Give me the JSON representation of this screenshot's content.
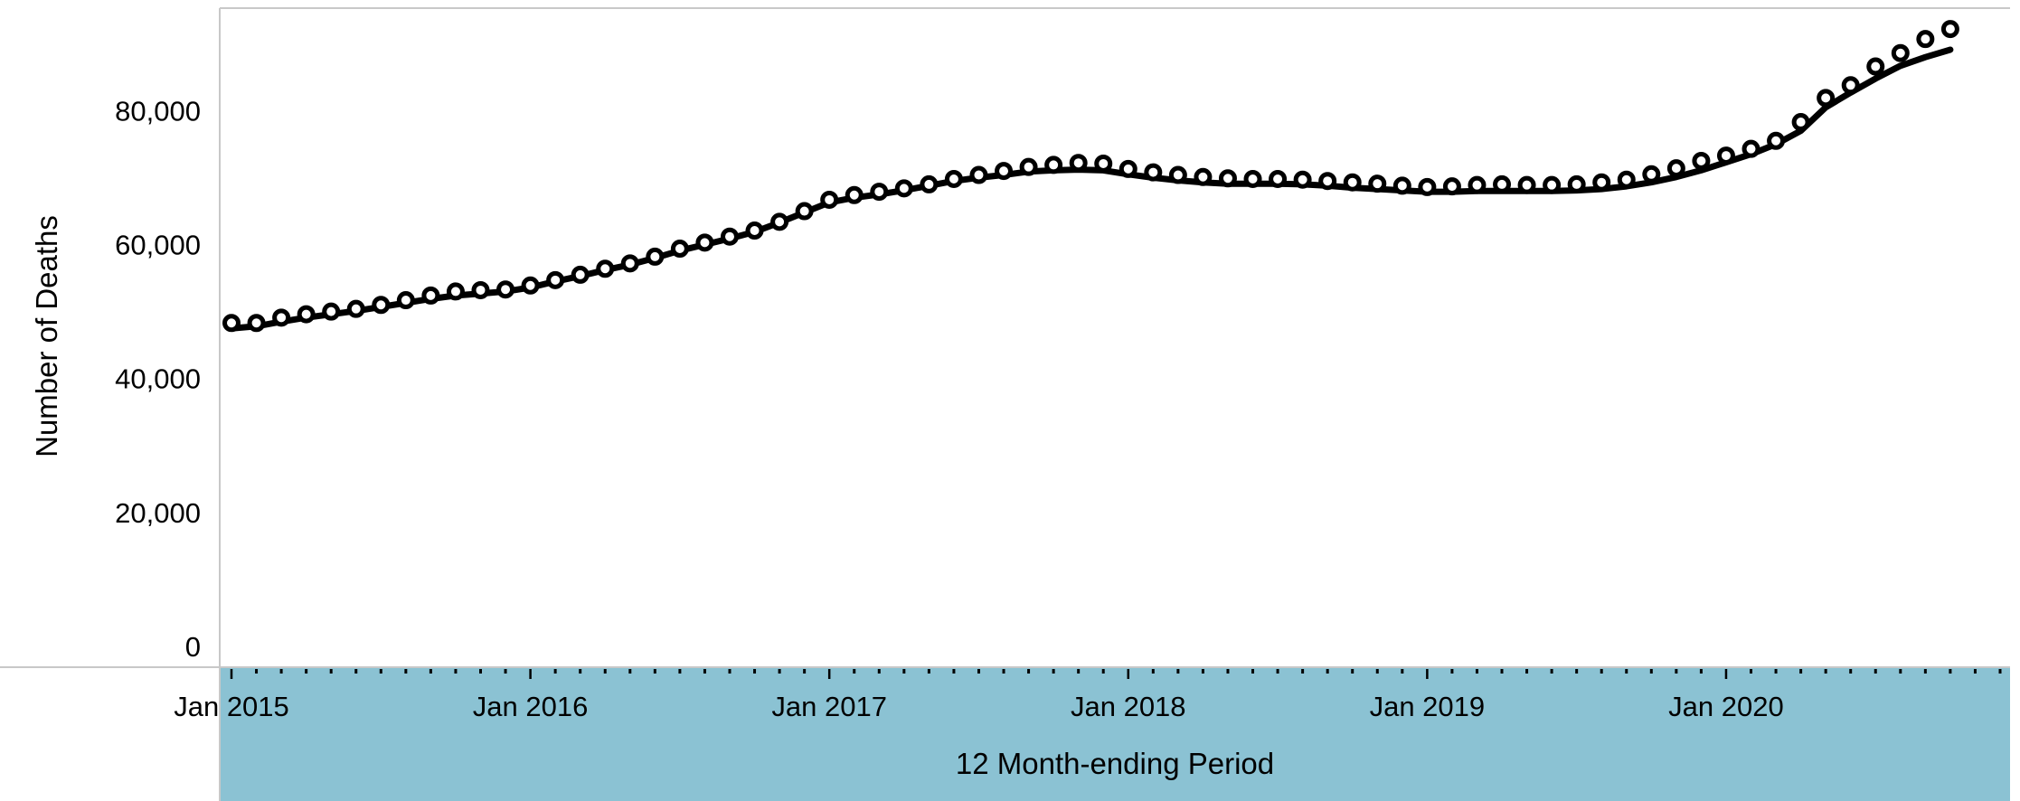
{
  "chart_data": {
    "type": "line",
    "title": "",
    "xlabel": "12 Month-ending Period",
    "ylabel": "Number of Deaths",
    "x_start": "2015-01",
    "x_end": "2020-12",
    "xlim": [
      "2014-12",
      "2020-12"
    ],
    "ylim": [
      0,
      95000
    ],
    "y_ticks": [
      0,
      20000,
      40000,
      60000,
      80000
    ],
    "y_tick_labels": [
      "0",
      "20,000",
      "40,000",
      "60,000",
      "80,000"
    ],
    "x_tick_labels": [
      "Jan 2015",
      "Jan 2016",
      "Jan 2017",
      "Jan 2018",
      "Jan 2019",
      "Jan 2020"
    ],
    "x_tick_values": [
      "2015-01",
      "2016-01",
      "2017-01",
      "2018-01",
      "2019-01",
      "2020-01"
    ],
    "grid": false,
    "colors": {
      "line": "#000000",
      "marker_fill": "#ffffff",
      "axis_band": "#8bc2d3",
      "axis_line": "#c8c8c8"
    },
    "series": [
      {
        "marker": "circle",
        "values": [
          48300,
          48300,
          49100,
          49600,
          50000,
          50400,
          51000,
          51700,
          52400,
          53000,
          53200,
          53300,
          53900,
          54700,
          55500,
          56400,
          57200,
          58200,
          59400,
          60300,
          61200,
          62100,
          63400,
          65000,
          66700,
          67400,
          67900,
          68400,
          69000,
          69800,
          70400,
          71000,
          71600,
          71900,
          72200,
          72100,
          71300,
          70800,
          70400,
          70100,
          69900,
          69800,
          69800,
          69700,
          69500,
          69300,
          69100,
          68800,
          68600,
          68700,
          68900,
          69000,
          68900,
          68900,
          69000,
          69300,
          69700,
          70500,
          71400,
          72500,
          73300,
          74300,
          75500,
          78300,
          81900,
          83800,
          86600,
          88600,
          90700,
          92200
        ]
      },
      {
        "marker": "none",
        "values": [
          47500,
          47800,
          48500,
          49100,
          49600,
          50100,
          50700,
          51300,
          51900,
          52400,
          52700,
          53000,
          53600,
          54500,
          55300,
          56200,
          57000,
          58000,
          59100,
          60000,
          60900,
          61900,
          63300,
          64800,
          66300,
          67000,
          67500,
          68100,
          68800,
          69500,
          70000,
          70400,
          70900,
          71100,
          71200,
          71100,
          70500,
          70000,
          69600,
          69300,
          69100,
          69100,
          69100,
          69000,
          68800,
          68500,
          68300,
          68100,
          67900,
          67900,
          68000,
          68000,
          68000,
          68000,
          68100,
          68300,
          68700,
          69300,
          70100,
          71100,
          72300,
          73500,
          75000,
          77000,
          80500,
          82700,
          84800,
          86700,
          88000,
          89100
        ]
      }
    ]
  }
}
